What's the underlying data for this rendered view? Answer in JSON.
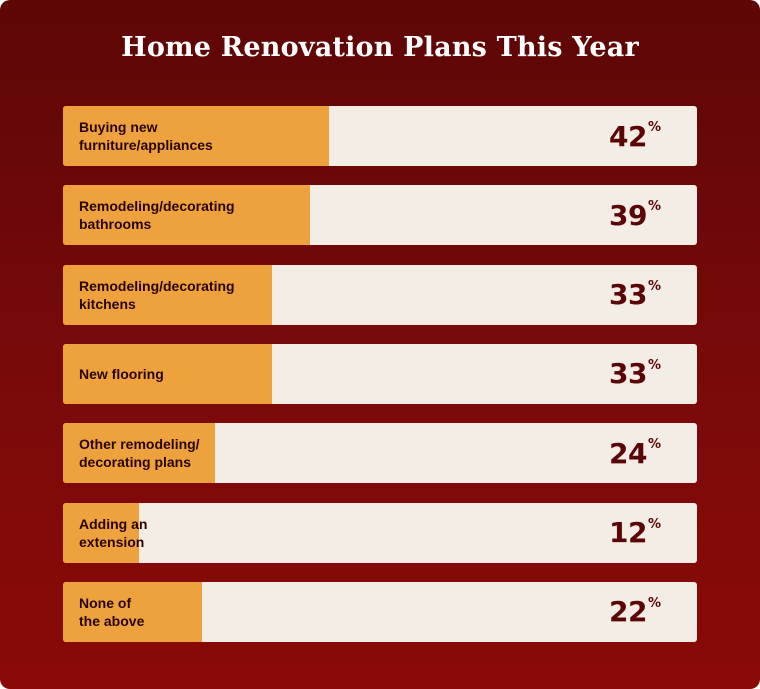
{
  "chart_data": {
    "type": "bar",
    "title": "Home Renovation Plans This Year",
    "orientation": "horizontal",
    "unit": "%",
    "xlim": [
      0,
      100
    ],
    "categories": [
      "Buying new\nfurniture/appliances",
      "Remodeling/decorating\nbathrooms",
      "Remodeling/decorating\nkitchens",
      "New flooring",
      "Other remodeling/\ndecorating plans",
      "Adding an\nextension",
      "None of\nthe above"
    ],
    "values": [
      42,
      39,
      33,
      33,
      24,
      12,
      22
    ],
    "colors": {
      "background": "#7a0a0a",
      "bar_fill": "#eea23d",
      "bar_track": "#f4ede6",
      "value_text": "#5a0606"
    }
  }
}
